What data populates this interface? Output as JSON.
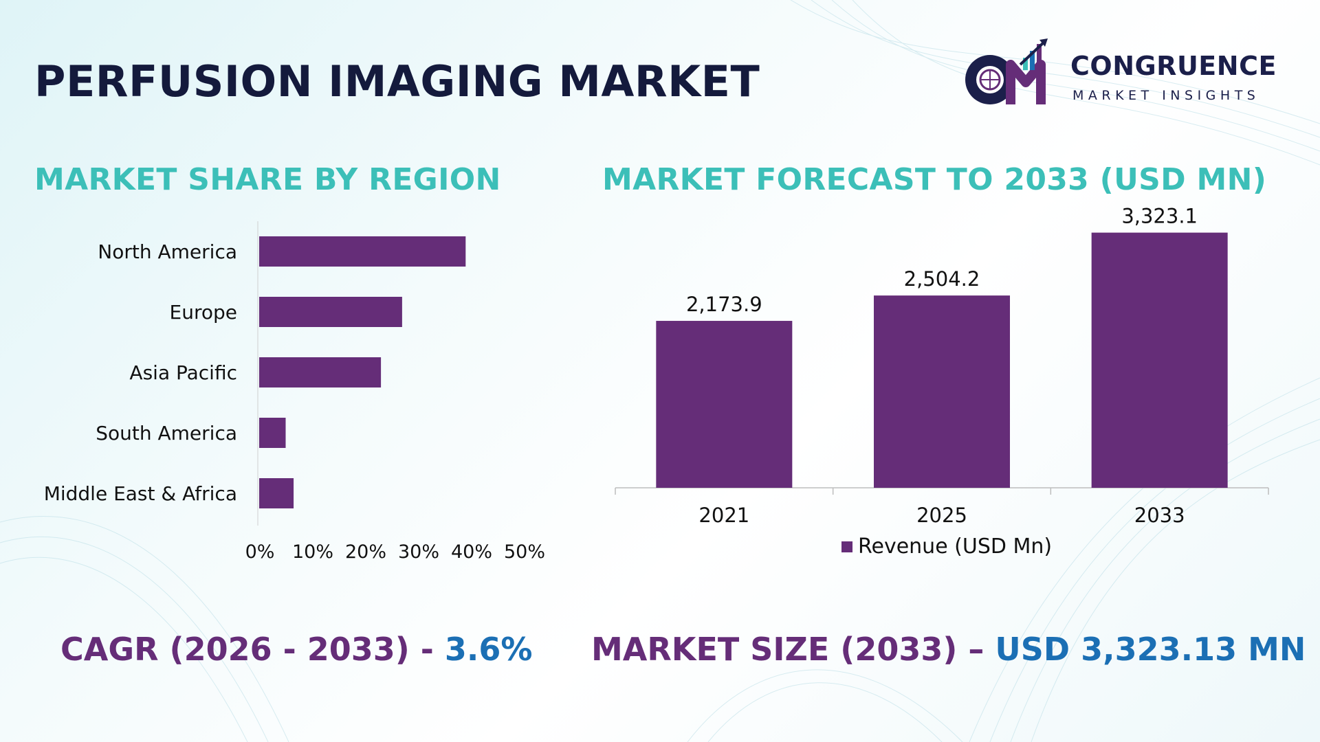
{
  "page": {
    "title": "PERFUSION IMAGING MARKET",
    "share_section_title": "MARKET SHARE BY REGION",
    "forecast_section_title": "MARKET FORECAST TO 2033 (USD MN)"
  },
  "logo": {
    "name": "CONGRUENCE",
    "tagline": "MARKET INSIGHTS",
    "monogram": "CM",
    "icon": "globe-chart-logo-icon"
  },
  "colors": {
    "bar": "#652d78",
    "section_title": "#3cbfb8",
    "title": "#141a3c",
    "footer_label": "#652d78",
    "footer_value": "#1b6fb4"
  },
  "chart_data": [
    {
      "type": "bar",
      "orientation": "horizontal",
      "categories": [
        "North America",
        "Europe",
        "Asia Pacific",
        "South America",
        "Middle East & Africa"
      ],
      "values": [
        39,
        27,
        23,
        5,
        6.5
      ],
      "unit": "%",
      "xlim": [
        0,
        50
      ],
      "xticks": [
        "0%",
        "10%",
        "20%",
        "30%",
        "40%",
        "50%"
      ],
      "grid": false
    },
    {
      "type": "bar",
      "orientation": "vertical",
      "categories": [
        "2021",
        "2025",
        "2033"
      ],
      "series": [
        {
          "name": "Revenue (USD Mn)",
          "values": [
            2173.9,
            2504.2,
            3323.1
          ]
        }
      ],
      "data_labels": [
        "2,173.9",
        "2,504.2",
        "3,323.1"
      ],
      "ylim": [
        0,
        3400
      ],
      "legend_position": "bottom",
      "grid": false
    }
  ],
  "footer": {
    "cagr_label": "CAGR (2026 - 2033) - ",
    "cagr_value": "3.6%",
    "size_label": "MARKET SIZE (2033) – ",
    "size_value": "USD 3,323.13 MN"
  }
}
